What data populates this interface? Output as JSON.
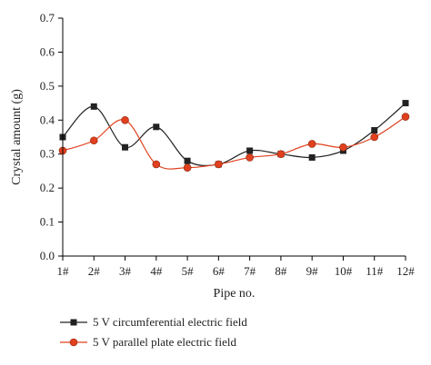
{
  "chart_data": {
    "type": "line",
    "xlabel": "Pipe no.",
    "ylabel": "Crystal amount (g)",
    "categories": [
      "1#",
      "2#",
      "3#",
      "4#",
      "5#",
      "6#",
      "7#",
      "8#",
      "9#",
      "10#",
      "11#",
      "12#"
    ],
    "ylim": [
      0.0,
      0.7
    ],
    "yticks": [
      "0.0",
      "0.1",
      "0.2",
      "0.3",
      "0.4",
      "0.5",
      "0.6",
      "0.7"
    ],
    "grid": false,
    "legend_position": "bottom",
    "series": [
      {
        "name": "5 V circumferential electric field",
        "values": [
          0.35,
          0.44,
          0.32,
          0.38,
          0.28,
          0.27,
          0.31,
          0.3,
          0.29,
          0.31,
          0.37,
          0.45
        ],
        "color": "#222222",
        "marker": "square"
      },
      {
        "name": "5 V parallel plate electric field",
        "values": [
          0.31,
          0.34,
          0.4,
          0.27,
          0.26,
          0.27,
          0.29,
          0.3,
          0.33,
          0.32,
          0.35,
          0.41
        ],
        "color": "#e0401e",
        "marker": "circle"
      }
    ]
  }
}
